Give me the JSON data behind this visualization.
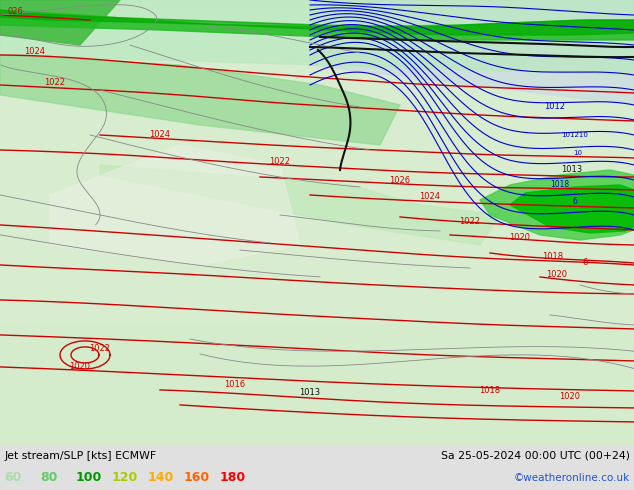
{
  "title_left": "Jet stream/SLP [kts] ECMWF",
  "title_right": "Sa 25-05-2024 00:00 UTC (00+24)",
  "credit": "©weatheronline.co.uk",
  "legend_values": [
    60,
    80,
    100,
    120,
    140,
    160,
    180
  ],
  "legend_colors": [
    "#aaddaa",
    "#66cc66",
    "#009900",
    "#aacc00",
    "#ffaa00",
    "#ff6600",
    "#ff0000"
  ],
  "fig_width": 6.34,
  "fig_height": 4.9,
  "dpi": 100,
  "map_bg": "#d8ecd0",
  "land_color": "#c8e8b8",
  "sea_color": "#ddeedd",
  "bottom_bg": "#e0e0e0",
  "jet_green_bright": "#00cc00",
  "jet_green_mid": "#66cc66",
  "jet_green_light": "#aaddaa",
  "slp_color": "#cc0000",
  "border_color": "#999999",
  "black_contour_color": "#000000",
  "blue_contour_color": "#0000cc"
}
